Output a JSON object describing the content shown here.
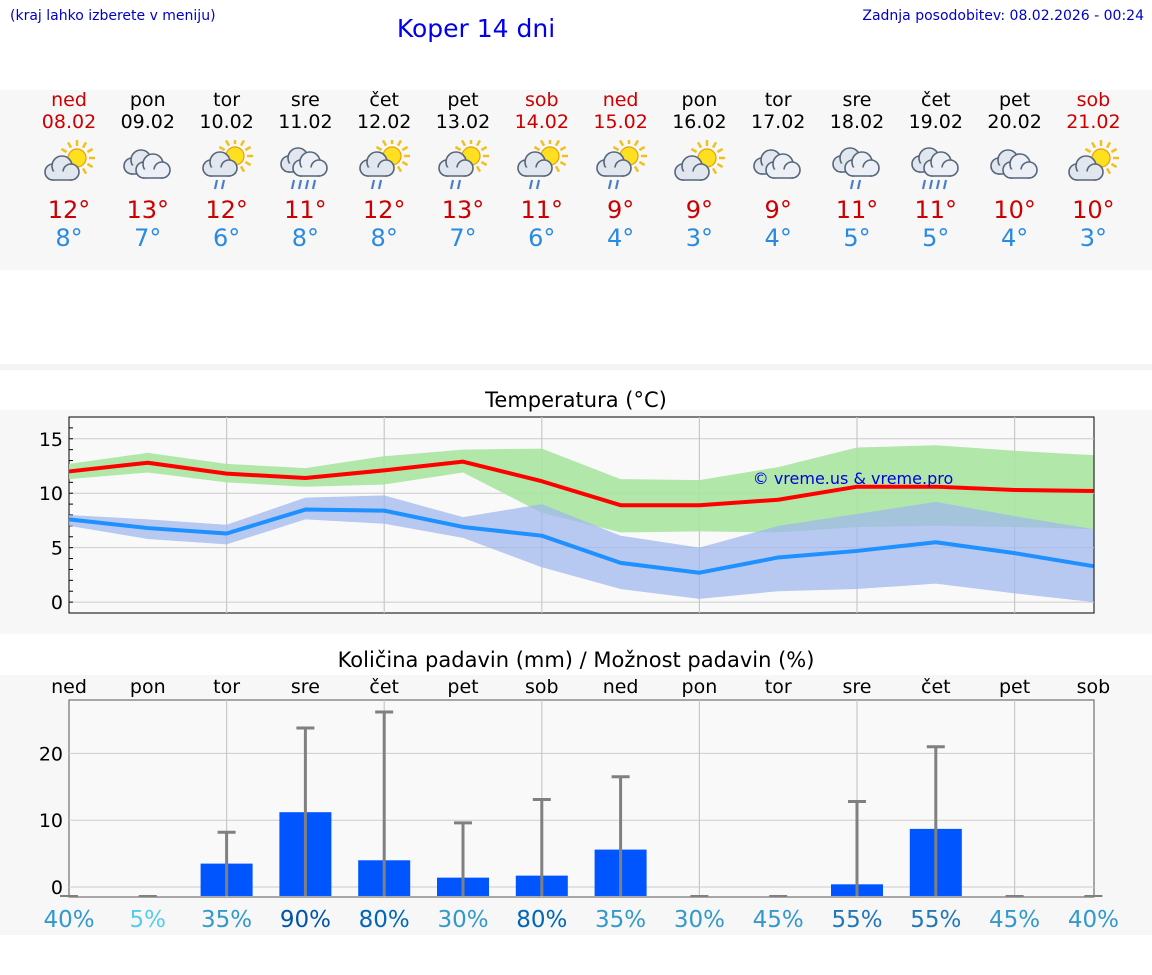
{
  "header": {
    "menu_hint": "(kraj lahko izberete v meniju)",
    "title": "Koper 14 dni",
    "last_update": "Zadnja posodobitev: 08.02.2026 - 00:24"
  },
  "days": [
    {
      "name": "ned",
      "date": "08.02",
      "weekend": true,
      "icon": "sun-cloud-icon",
      "max": "12°",
      "min": "8°"
    },
    {
      "name": "pon",
      "date": "09.02",
      "weekend": false,
      "icon": "cloudy-icon",
      "max": "13°",
      "min": "7°"
    },
    {
      "name": "tor",
      "date": "10.02",
      "weekend": false,
      "icon": "sun-cloud-rain-icon",
      "max": "12°",
      "min": "6°"
    },
    {
      "name": "sre",
      "date": "11.02",
      "weekend": false,
      "icon": "cloud-heavy-rain-icon",
      "max": "11°",
      "min": "8°"
    },
    {
      "name": "čet",
      "date": "12.02",
      "weekend": false,
      "icon": "sun-cloud-rain-icon",
      "max": "12°",
      "min": "8°"
    },
    {
      "name": "pet",
      "date": "13.02",
      "weekend": false,
      "icon": "sun-cloud-rain-icon",
      "max": "13°",
      "min": "7°"
    },
    {
      "name": "sob",
      "date": "14.02",
      "weekend": true,
      "icon": "sun-cloud-rain-icon",
      "max": "11°",
      "min": "6°"
    },
    {
      "name": "ned",
      "date": "15.02",
      "weekend": true,
      "icon": "sun-cloud-rain-icon",
      "max": "9°",
      "min": "4°"
    },
    {
      "name": "pon",
      "date": "16.02",
      "weekend": false,
      "icon": "sun-cloud-icon",
      "max": "9°",
      "min": "3°"
    },
    {
      "name": "tor",
      "date": "17.02",
      "weekend": false,
      "icon": "cloudy-icon",
      "max": "9°",
      "min": "4°"
    },
    {
      "name": "sre",
      "date": "18.02",
      "weekend": false,
      "icon": "cloud-rain-icon",
      "max": "11°",
      "min": "5°"
    },
    {
      "name": "čet",
      "date": "19.02",
      "weekend": false,
      "icon": "cloud-heavy-rain-icon",
      "max": "11°",
      "min": "5°"
    },
    {
      "name": "pet",
      "date": "20.02",
      "weekend": false,
      "icon": "cloudy-icon",
      "max": "10°",
      "min": "4°"
    },
    {
      "name": "sob",
      "date": "21.02",
      "weekend": true,
      "icon": "sun-cloud-icon",
      "max": "10°",
      "min": "3°"
    }
  ],
  "colors": {
    "max_line": "#ff0000",
    "min_line": "#1e90ff",
    "max_band": "#a8e4a0",
    "min_band": "#a0b8ec",
    "bar": "#0055ff",
    "whisker": "#808080"
  },
  "chart_data": [
    {
      "type": "line",
      "title": "Temperatura (°C)",
      "watermark": "© vreme.us & vreme.pro",
      "x": [
        0,
        1,
        2,
        3,
        4,
        5,
        6,
        7,
        8,
        9,
        10,
        11,
        12,
        13
      ],
      "ylim": [
        -1,
        17
      ],
      "yticks": [
        0,
        5,
        10,
        15
      ],
      "grid": true,
      "series": [
        {
          "name": "max",
          "values": [
            12,
            12.8,
            11.8,
            11.4,
            12.1,
            12.9,
            11.1,
            8.9,
            8.9,
            9.4,
            10.6,
            10.6,
            10.3,
            10.2
          ],
          "band_high": [
            12.7,
            13.7,
            12.7,
            12.3,
            13.4,
            14.0,
            14.1,
            11.3,
            11.2,
            12.4,
            14.2,
            14.4,
            13.9,
            13.5
          ],
          "band_low": [
            11.3,
            11.9,
            11.0,
            10.6,
            10.8,
            11.9,
            8.2,
            6.4,
            6.5,
            6.4,
            6.9,
            7.0,
            6.9,
            6.7
          ]
        },
        {
          "name": "min",
          "values": [
            7.6,
            6.8,
            6.3,
            8.5,
            8.4,
            6.9,
            6.1,
            3.6,
            2.7,
            4.1,
            4.7,
            5.5,
            4.5,
            3.3
          ],
          "band_high": [
            8.0,
            7.6,
            7.1,
            9.6,
            9.8,
            7.8,
            9.0,
            6.1,
            5.0,
            7.0,
            8.1,
            9.2,
            7.9,
            6.7
          ],
          "band_low": [
            7.0,
            5.8,
            5.3,
            7.6,
            7.2,
            5.9,
            3.2,
            1.2,
            0.3,
            1.0,
            1.2,
            1.7,
            0.8,
            0.0
          ]
        }
      ]
    },
    {
      "type": "bar",
      "title": "Količina padavin (mm) / Možnost padavin (%)",
      "categories": [
        "ned",
        "pon",
        "tor",
        "sre",
        "čet",
        "pet",
        "sob",
        "ned",
        "pon",
        "tor",
        "sre",
        "čet",
        "pet",
        "sob"
      ],
      "values": [
        0,
        0,
        3.5,
        11.2,
        4.0,
        1.4,
        1.7,
        5.6,
        0,
        0,
        0.4,
        8.7,
        0,
        0
      ],
      "whisker_high": [
        0,
        0,
        8.2,
        23.8,
        26.2,
        9.6,
        13.1,
        16.5,
        0,
        0,
        12.8,
        21.0,
        0,
        0
      ],
      "ylim": [
        -1.5,
        28
      ],
      "yticks": [
        0,
        10,
        20
      ],
      "grid": true,
      "probability": [
        "40%",
        "5%",
        "35%",
        "90%",
        "80%",
        "30%",
        "80%",
        "35%",
        "30%",
        "45%",
        "55%",
        "55%",
        "45%",
        "40%"
      ],
      "probability_colors": [
        "#3399cc",
        "#55ccee",
        "#3399cc",
        "#0055aa",
        "#0066bb",
        "#3399cc",
        "#0066bb",
        "#3399cc",
        "#3399cc",
        "#3399cc",
        "#2277bb",
        "#2277bb",
        "#3399cc",
        "#3399cc"
      ]
    }
  ]
}
